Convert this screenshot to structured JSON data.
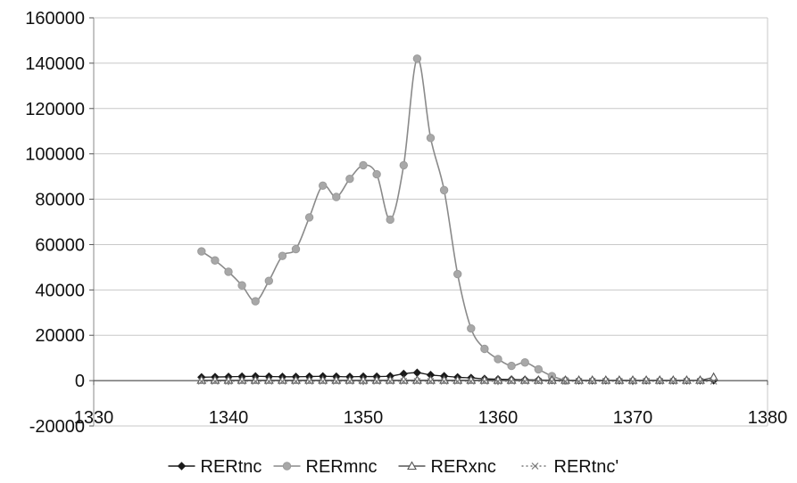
{
  "chart_data": {
    "type": "line",
    "title": "",
    "xlabel": "",
    "ylabel": "",
    "xlim": [
      1330,
      1380
    ],
    "ylim": [
      -20000,
      160000
    ],
    "x_ticks": [
      1330,
      1340,
      1350,
      1360,
      1370,
      1380
    ],
    "y_ticks": [
      -20000,
      0,
      20000,
      40000,
      60000,
      80000,
      100000,
      120000,
      140000,
      160000
    ],
    "x_tick_labels": [
      "1330",
      "1340",
      "1350",
      "1360",
      "1370",
      "1380"
    ],
    "y_tick_labels": [
      "-20000",
      "0",
      "20000",
      "40000",
      "60000",
      "80000",
      "100000",
      "120000",
      "140000",
      "160000"
    ],
    "grid": "horizontal",
    "legend_position": "bottom",
    "series": [
      {
        "name": "RERtnc",
        "color": "#1a1a1a",
        "marker": "diamond",
        "x": [
          1338,
          1339,
          1340,
          1341,
          1342,
          1343,
          1344,
          1345,
          1346,
          1347,
          1348,
          1349,
          1350,
          1351,
          1352,
          1353,
          1354,
          1355,
          1356,
          1357,
          1358,
          1359,
          1360,
          1361,
          1362,
          1363,
          1364,
          1365,
          1366,
          1367,
          1368,
          1369,
          1370,
          1371,
          1372,
          1373,
          1374,
          1375,
          1376
        ],
        "values": [
          1500,
          1600,
          1700,
          1800,
          1900,
          1800,
          1700,
          1700,
          1800,
          1900,
          1800,
          1700,
          1800,
          1800,
          2000,
          3000,
          3500,
          2500,
          2000,
          1500,
          1200,
          800,
          600,
          500,
          400,
          300,
          200,
          100,
          100,
          100,
          100,
          100,
          100,
          100,
          100,
          100,
          100,
          100,
          100
        ]
      },
      {
        "name": "RERmnc",
        "color": "#8a8a8a",
        "marker": "circle",
        "x": [
          1338,
          1339,
          1340,
          1341,
          1342,
          1343,
          1344,
          1345,
          1346,
          1347,
          1348,
          1349,
          1350,
          1351,
          1352,
          1353,
          1354,
          1355,
          1356,
          1357,
          1358,
          1359,
          1360,
          1361,
          1362,
          1363,
          1364,
          1365
        ],
        "values": [
          57000,
          53000,
          48000,
          42000,
          35000,
          44000,
          55000,
          58000,
          72000,
          86000,
          81000,
          89000,
          95000,
          91000,
          71000,
          95000,
          142000,
          107000,
          84000,
          47000,
          23000,
          14000,
          9500,
          6500,
          8000,
          5000,
          2000,
          0
        ]
      },
      {
        "name": "RERxnc",
        "color": "#555555",
        "marker": "triangle",
        "x": [
          1338,
          1339,
          1340,
          1341,
          1342,
          1343,
          1344,
          1345,
          1346,
          1347,
          1348,
          1349,
          1350,
          1351,
          1352,
          1353,
          1354,
          1355,
          1356,
          1357,
          1358,
          1359,
          1360,
          1361,
          1362,
          1363,
          1364,
          1365,
          1366,
          1367,
          1368,
          1369,
          1370,
          1371,
          1372,
          1373,
          1374,
          1375,
          1376
        ],
        "values": [
          200,
          200,
          200,
          200,
          200,
          200,
          200,
          200,
          200,
          200,
          200,
          200,
          200,
          200,
          200,
          200,
          200,
          200,
          200,
          200,
          200,
          200,
          200,
          200,
          200,
          200,
          200,
          200,
          200,
          200,
          200,
          200,
          200,
          200,
          200,
          200,
          200,
          200,
          1500
        ]
      },
      {
        "name": "RERtnc'",
        "color": "#7a7a7a",
        "marker": "x",
        "x": [
          1338,
          1339,
          1340,
          1341,
          1342,
          1343,
          1344,
          1345,
          1346,
          1347,
          1348,
          1349,
          1350,
          1351,
          1352,
          1353,
          1354,
          1355,
          1356,
          1357,
          1358,
          1359,
          1360,
          1361,
          1362,
          1363,
          1364,
          1365,
          1366,
          1367,
          1368,
          1369,
          1370,
          1371,
          1372,
          1373,
          1374,
          1375,
          1376
        ],
        "values": [
          -300,
          -300,
          -300,
          -300,
          -300,
          -300,
          -300,
          -300,
          -300,
          -300,
          -300,
          -300,
          -300,
          -300,
          -300,
          -300,
          -300,
          -300,
          -300,
          -300,
          -300,
          -300,
          -300,
          -300,
          -300,
          -300,
          -300,
          -300,
          -300,
          -300,
          -300,
          -300,
          -300,
          -300,
          -300,
          -300,
          -300,
          -300,
          -300
        ]
      }
    ]
  }
}
